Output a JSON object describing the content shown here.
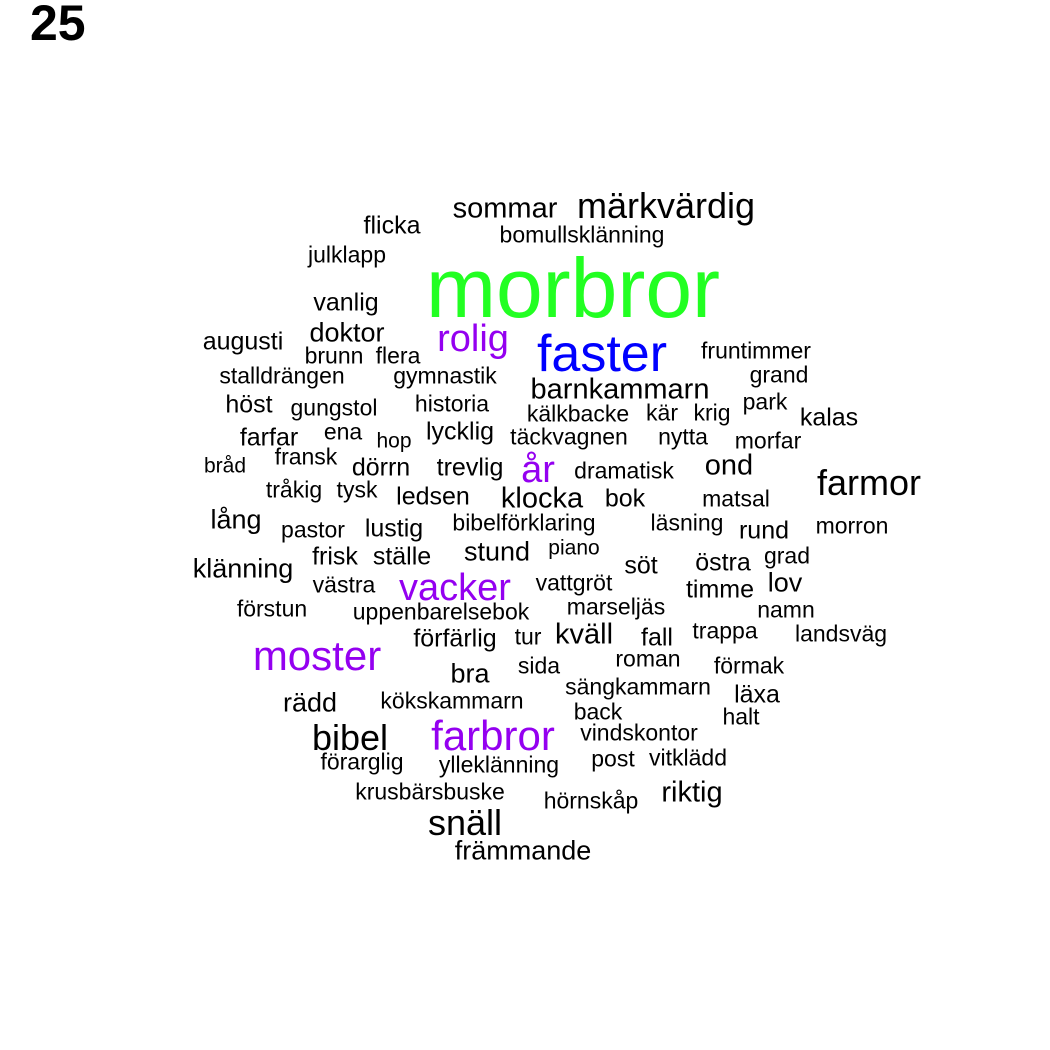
{
  "panel_label": "25",
  "colors": {
    "green": "#22ff22",
    "blue": "#0000ff",
    "purple": "#9400f0",
    "black": "#000000"
  },
  "words": [
    {
      "text": "morbror",
      "color": "green"
    },
    {
      "text": "faster",
      "color": "blue"
    },
    {
      "text": "moster",
      "color": "purple"
    },
    {
      "text": "farbror",
      "color": "purple"
    },
    {
      "text": "vacker",
      "color": "purple"
    },
    {
      "text": "rolig",
      "color": "purple"
    },
    {
      "text": "år",
      "color": "purple"
    },
    {
      "text": "märkvärdig",
      "color": "black"
    },
    {
      "text": "sommar",
      "color": "black"
    },
    {
      "text": "flicka",
      "color": "black"
    },
    {
      "text": "bomullsklänning",
      "color": "black"
    },
    {
      "text": "julklapp",
      "color": "black"
    },
    {
      "text": "vanlig",
      "color": "black"
    },
    {
      "text": "augusti",
      "color": "black"
    },
    {
      "text": "doktor",
      "color": "black"
    },
    {
      "text": "brunn",
      "color": "black"
    },
    {
      "text": "flera",
      "color": "black"
    },
    {
      "text": "fruntimmer",
      "color": "black"
    },
    {
      "text": "stalldrängen",
      "color": "black"
    },
    {
      "text": "gymnastik",
      "color": "black"
    },
    {
      "text": "barnkammarn",
      "color": "black"
    },
    {
      "text": "grand",
      "color": "black"
    },
    {
      "text": "höst",
      "color": "black"
    },
    {
      "text": "gungstol",
      "color": "black"
    },
    {
      "text": "historia",
      "color": "black"
    },
    {
      "text": "kälkbacke",
      "color": "black"
    },
    {
      "text": "kär",
      "color": "black"
    },
    {
      "text": "krig",
      "color": "black"
    },
    {
      "text": "park",
      "color": "black"
    },
    {
      "text": "kalas",
      "color": "black"
    },
    {
      "text": "farfar",
      "color": "black"
    },
    {
      "text": "ena",
      "color": "black"
    },
    {
      "text": "hop",
      "color": "black"
    },
    {
      "text": "lycklig",
      "color": "black"
    },
    {
      "text": "täckvagnen",
      "color": "black"
    },
    {
      "text": "nytta",
      "color": "black"
    },
    {
      "text": "morfar",
      "color": "black"
    },
    {
      "text": "bråd",
      "color": "black"
    },
    {
      "text": "fransk",
      "color": "black"
    },
    {
      "text": "dörrn",
      "color": "black"
    },
    {
      "text": "trevlig",
      "color": "black"
    },
    {
      "text": "dramatisk",
      "color": "black"
    },
    {
      "text": "ond",
      "color": "black"
    },
    {
      "text": "farmor",
      "color": "black"
    },
    {
      "text": "tråkig",
      "color": "black"
    },
    {
      "text": "tysk",
      "color": "black"
    },
    {
      "text": "ledsen",
      "color": "black"
    },
    {
      "text": "klocka",
      "color": "black"
    },
    {
      "text": "bok",
      "color": "black"
    },
    {
      "text": "matsal",
      "color": "black"
    },
    {
      "text": "lång",
      "color": "black"
    },
    {
      "text": "pastor",
      "color": "black"
    },
    {
      "text": "lustig",
      "color": "black"
    },
    {
      "text": "bibelförklaring",
      "color": "black"
    },
    {
      "text": "läsning",
      "color": "black"
    },
    {
      "text": "rund",
      "color": "black"
    },
    {
      "text": "morron",
      "color": "black"
    },
    {
      "text": "klänning",
      "color": "black"
    },
    {
      "text": "frisk",
      "color": "black"
    },
    {
      "text": "ställe",
      "color": "black"
    },
    {
      "text": "stund",
      "color": "black"
    },
    {
      "text": "piano",
      "color": "black"
    },
    {
      "text": "söt",
      "color": "black"
    },
    {
      "text": "östra",
      "color": "black"
    },
    {
      "text": "grad",
      "color": "black"
    },
    {
      "text": "västra",
      "color": "black"
    },
    {
      "text": "vattgröt",
      "color": "black"
    },
    {
      "text": "timme",
      "color": "black"
    },
    {
      "text": "lov",
      "color": "black"
    },
    {
      "text": "förstun",
      "color": "black"
    },
    {
      "text": "uppenbarelsebok",
      "color": "black"
    },
    {
      "text": "marseljäs",
      "color": "black"
    },
    {
      "text": "namn",
      "color": "black"
    },
    {
      "text": "förfärlig",
      "color": "black"
    },
    {
      "text": "tur",
      "color": "black"
    },
    {
      "text": "kväll",
      "color": "black"
    },
    {
      "text": "fall",
      "color": "black"
    },
    {
      "text": "trappa",
      "color": "black"
    },
    {
      "text": "landsväg",
      "color": "black"
    },
    {
      "text": "bra",
      "color": "black"
    },
    {
      "text": "sida",
      "color": "black"
    },
    {
      "text": "roman",
      "color": "black"
    },
    {
      "text": "förmak",
      "color": "black"
    },
    {
      "text": "rädd",
      "color": "black"
    },
    {
      "text": "kökskammarn",
      "color": "black"
    },
    {
      "text": "sängkammarn",
      "color": "black"
    },
    {
      "text": "läxa",
      "color": "black"
    },
    {
      "text": "back",
      "color": "black"
    },
    {
      "text": "halt",
      "color": "black"
    },
    {
      "text": "bibel",
      "color": "black"
    },
    {
      "text": "vindskontor",
      "color": "black"
    },
    {
      "text": "förarglig",
      "color": "black"
    },
    {
      "text": "ylleklänning",
      "color": "black"
    },
    {
      "text": "post",
      "color": "black"
    },
    {
      "text": "vitklädd",
      "color": "black"
    },
    {
      "text": "krusbärsbuske",
      "color": "black"
    },
    {
      "text": "hörnskåp",
      "color": "black"
    },
    {
      "text": "riktig",
      "color": "black"
    },
    {
      "text": "snäll",
      "color": "black"
    },
    {
      "text": "främmande",
      "color": "black"
    }
  ]
}
